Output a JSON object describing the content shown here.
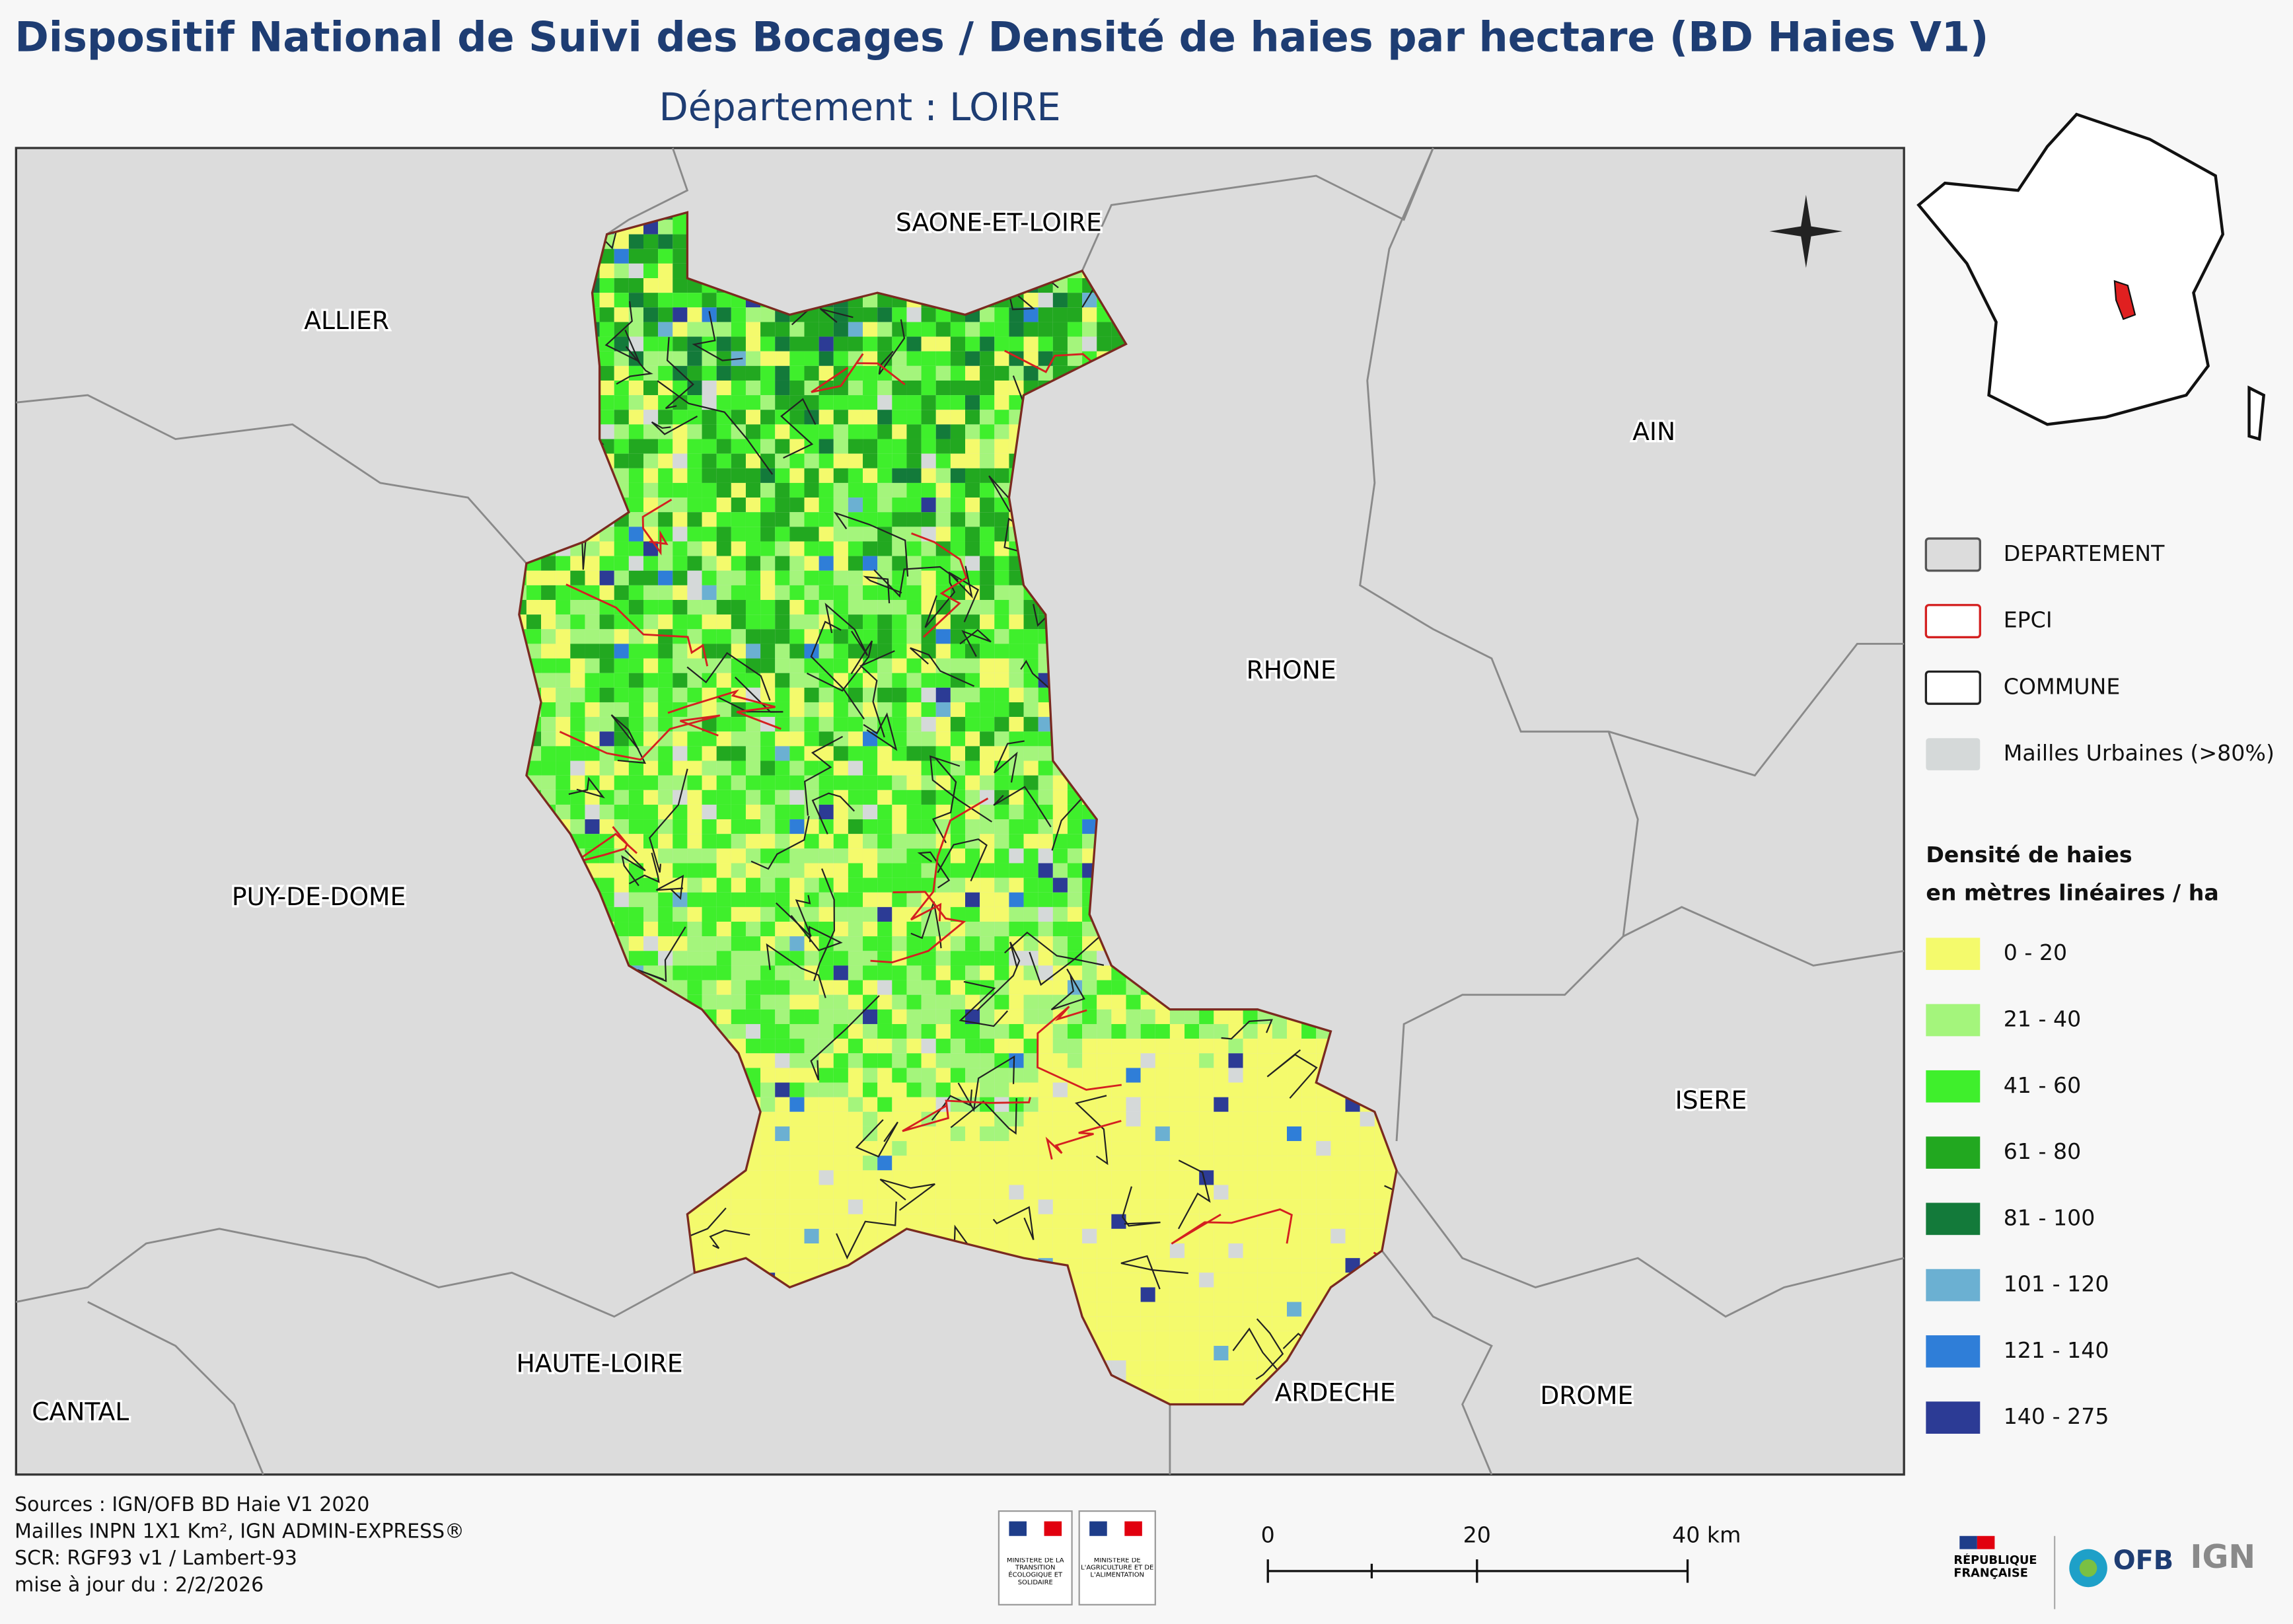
{
  "header": {
    "title": "Dispositif National de Suivi des Bocages / Densité de haies par hectare (BD Haies V1)",
    "subtitle": "Département :  LOIRE"
  },
  "map": {
    "departments": [
      "SAONE-ET-LOIRE",
      "ALLIER",
      "AIN",
      "RHONE",
      "PUY-DE-DOME",
      "ISERE",
      "HAUTE-LOIRE",
      "CANTAL",
      "ARDECHE",
      "DROME"
    ]
  },
  "legend": {
    "layers": [
      {
        "label": "DEPARTEMENT",
        "fill": "#dcdcdc",
        "stroke": "#555555"
      },
      {
        "label": "EPCI",
        "fill": "#ffffff",
        "stroke": "#d42020"
      },
      {
        "label": "COMMUNE",
        "fill": "#ffffff",
        "stroke": "#222222"
      },
      {
        "label": "Mailles Urbaines (>80%)",
        "fill": "#d5d9d9",
        "stroke": "none"
      }
    ],
    "density_title": [
      "Densité de haies",
      "en mètres linéaires / ha"
    ],
    "classes": [
      {
        "label": "0 - 20",
        "color": "#f4fa6c"
      },
      {
        "label": "21 - 40",
        "color": "#a4f57c"
      },
      {
        "label": "41 - 60",
        "color": "#3fef2c"
      },
      {
        "label": "61 - 80",
        "color": "#22a820"
      },
      {
        "label": "81 - 100",
        "color": "#137a3a"
      },
      {
        "label": "101 - 120",
        "color": "#6bb0d2"
      },
      {
        "label": "121 - 140",
        "color": "#2f7ed8"
      },
      {
        "label": "140 - 275",
        "color": "#2c3b95"
      }
    ]
  },
  "sources": [
    "Sources : IGN/OFB BD Haie V1 2020",
    "Mailles INPN 1X1 Km²,  IGN ADMIN-EXPRESS®",
    "SCR: RGF93 v1 / Lambert-93",
    "mise à jour du  : 2/2/2026"
  ],
  "scale_bar": {
    "labels": [
      "0",
      "20",
      "40 km"
    ]
  },
  "logos": {
    "ministry1": "MINISTÈRE DE LA TRANSITION ÉCOLOGIQUE ET SOLIDAIRE",
    "ministry2": "MINISTÈRE DE L'AGRICULTURE ET DE L'ALIMENTATION",
    "republique": "RÉPUBLIQUE FRANÇAISE",
    "ofb": "OFB",
    "ign": "IGN"
  }
}
